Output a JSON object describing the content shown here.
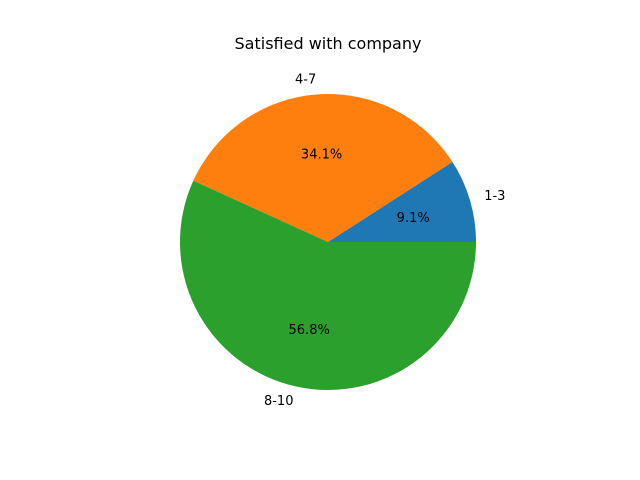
{
  "chart_data": {
    "type": "pie",
    "title": "Satisfied with company",
    "categories": [
      "1-3",
      "4-7",
      "8-10"
    ],
    "values": [
      9.1,
      34.1,
      56.8
    ],
    "value_labels": [
      "9.1%",
      "34.1%",
      "56.8%"
    ],
    "colors": [
      "#1f77b4",
      "#ff7f0e",
      "#2ca02c"
    ],
    "start_angle_deg": 0,
    "direction": "counterclockwise"
  }
}
